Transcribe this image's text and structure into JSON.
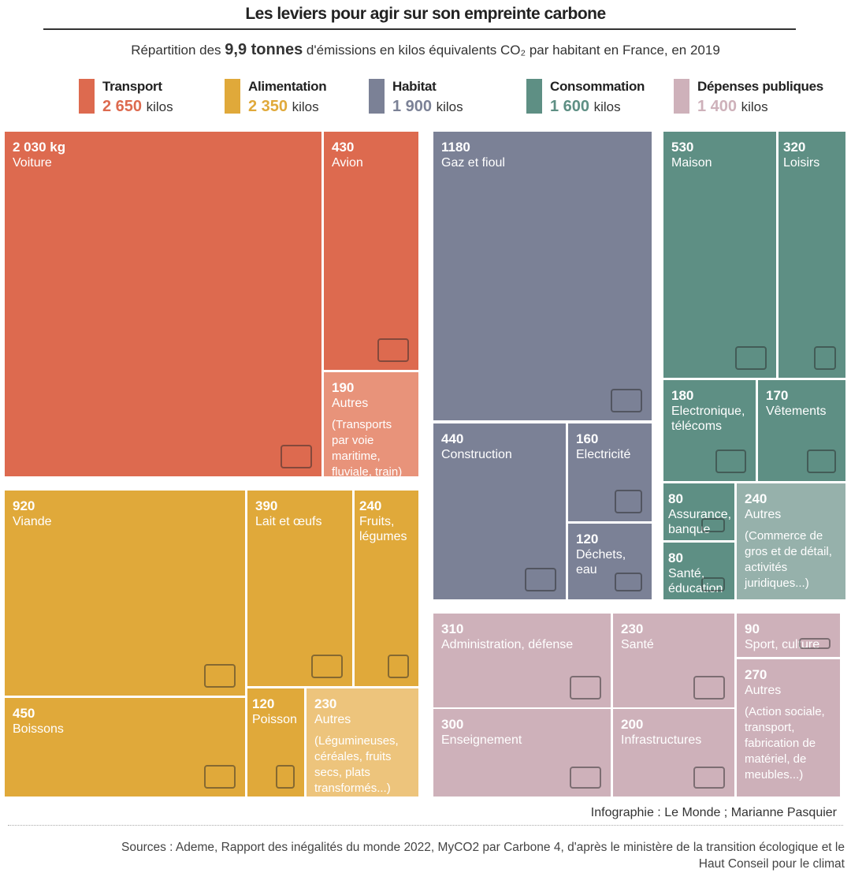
{
  "title": "Les leviers pour agir sur son empreinte carbone",
  "subtitle": {
    "before": "Répartition des ",
    "bold": "9,9 tonnes",
    "after": " d'émissions en kilos équivalents CO₂ par habitant en France, en 2019"
  },
  "unit": "kilos",
  "colors": {
    "Transport": "#dd6a4f",
    "Alimentation": "#e0a93a",
    "Habitat": "#7b8196",
    "Consommation": "#5e8f84",
    "Dépenses publiques": "#ceb1ba"
  },
  "legend": [
    {
      "name": "Transport",
      "value": "2 650",
      "color": "#dd6a4f"
    },
    {
      "name": "Alimentation",
      "value": "2 350",
      "color": "#e0a93a"
    },
    {
      "name": "Habitat",
      "value": "1 900",
      "color": "#7b8196"
    },
    {
      "name": "Consommation",
      "value": "1 600",
      "color": "#5e8f84"
    },
    {
      "name": "Dépenses publiques",
      "value": "1 400",
      "color": "#ceb1ba"
    }
  ],
  "chart_data": {
    "type": "treemap",
    "title": "Les leviers pour agir sur son empreinte carbone",
    "total_tonnes": 9.9,
    "groups": [
      {
        "name": "Transport",
        "total": 2650,
        "items": [
          {
            "value": 2030,
            "label": "2 030 kg",
            "name": "Voiture",
            "icon": "car-icon"
          },
          {
            "value": 430,
            "label": "430",
            "name": "Avion",
            "icon": "plane-icon"
          },
          {
            "value": 190,
            "label": "190",
            "name": "Autres",
            "detail": "(Transports par voie maritime, fluviale, train)"
          }
        ]
      },
      {
        "name": "Alimentation",
        "total": 2350,
        "items": [
          {
            "value": 920,
            "label": "920",
            "name": "Viande",
            "icon": "meat-icon"
          },
          {
            "value": 390,
            "label": "390",
            "name": "Lait et œufs",
            "icon": "milk-icon"
          },
          {
            "value": 240,
            "label": "240",
            "name": "Fruits, légumes",
            "icon": "fruit-icon"
          },
          {
            "value": 450,
            "label": "450",
            "name": "Boissons",
            "icon": "drink-icon"
          },
          {
            "value": 120,
            "label": "120",
            "name": "Poisson",
            "icon": "fish-icon"
          },
          {
            "value": 230,
            "label": "230",
            "name": "Autres",
            "detail": "(Légumineuses, céréales, fruits secs, plats transformés...)"
          }
        ]
      },
      {
        "name": "Habitat",
        "total": 1900,
        "items": [
          {
            "value": 1180,
            "label": "1180",
            "name": "Gaz et fioul",
            "icon": "boiler-icon"
          },
          {
            "value": 440,
            "label": "440",
            "name": "Construction",
            "icon": "tools-icon"
          },
          {
            "value": 160,
            "label": "160",
            "name": "Electricité",
            "icon": "bulb-icon"
          },
          {
            "value": 120,
            "label": "120",
            "name": "Déchets, eau",
            "icon": "drop-icon"
          }
        ]
      },
      {
        "name": "Consommation",
        "total": 1600,
        "items": [
          {
            "value": 530,
            "label": "530",
            "name": "Maison",
            "icon": "house-icon"
          },
          {
            "value": 320,
            "label": "320",
            "name": "Loisirs",
            "icon": "bike-icon"
          },
          {
            "value": 180,
            "label": "180",
            "name": "Electronique, télécoms",
            "icon": "phone-icon"
          },
          {
            "value": 170,
            "label": "170",
            "name": "Vêtements",
            "icon": "tshirt-icon"
          },
          {
            "value": 80,
            "label": "80",
            "name": "Assurance, banque",
            "icon": "safe-icon"
          },
          {
            "value": 80,
            "label": "80",
            "name": "Santé, éducation",
            "icon": "pills-icon"
          },
          {
            "value": 240,
            "label": "240",
            "name": "Autres",
            "detail": "(Commerce de gros et de détail, activités juridiques...)"
          }
        ]
      },
      {
        "name": "Dépenses publiques",
        "total": 1400,
        "items": [
          {
            "value": 310,
            "label": "310",
            "name": "Administration, défense",
            "icon": "city-icon"
          },
          {
            "value": 230,
            "label": "230",
            "name": "Santé",
            "icon": "syringe-icon"
          },
          {
            "value": 300,
            "label": "300",
            "name": "Enseignement",
            "icon": "brain-icon"
          },
          {
            "value": 200,
            "label": "200",
            "name": "Infrastructures",
            "icon": "crane-icon"
          },
          {
            "value": 90,
            "label": "90",
            "name": "Sport, culture",
            "icon": "music-icon"
          },
          {
            "value": 270,
            "label": "270",
            "name": "Autres",
            "detail": "(Action sociale, transport, fabrication de matériel, de meubles...)"
          }
        ]
      }
    ]
  },
  "credit": "Infographie : Le Monde ; Marianne Pasquier",
  "sources": "Sources : Ademe, Rapport des inégalités du monde 2022, MyCO2 par Carbone 4, d'après le ministère de la transition écologique et le Haut Conseil pour le climat"
}
